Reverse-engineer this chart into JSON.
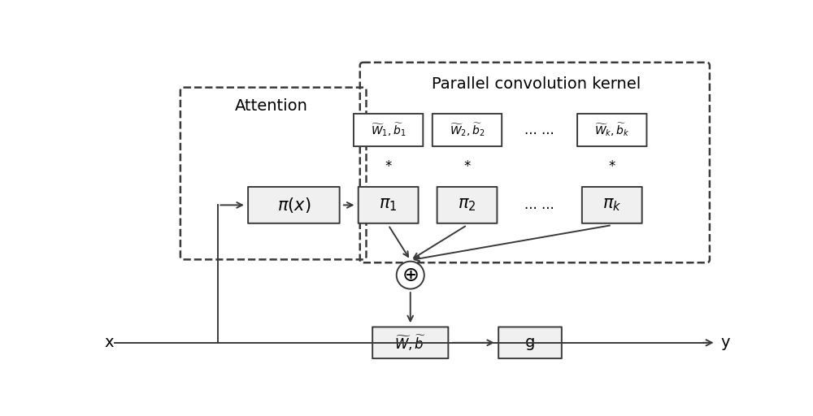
{
  "bg_color": "#ffffff",
  "line_color": "#3a3a3a",
  "attention_label": "Attention",
  "parallel_label": "Parallel convolution kernel",
  "pi_x_label": "$\\pi(x)$",
  "pi1_label": "$\\pi_1$",
  "pi2_label": "$\\pi_2$",
  "pik_label": "$\\pi_k$",
  "wb1_label": "$\\widetilde{W}_1,\\widetilde{b}_1$",
  "wb2_label": "$\\widetilde{W}_2,\\widetilde{b}_2$",
  "wbk_label": "$\\widetilde{W}_k,\\widetilde{b}_k$",
  "wb_label": "$\\widetilde{W},\\widetilde{b}$",
  "g_label": "g",
  "x_label": "x",
  "y_label": "y",
  "dots_label": "... ...",
  "star": "*",
  "figw": 10.0,
  "figh": 5.12,
  "dpi": 100
}
